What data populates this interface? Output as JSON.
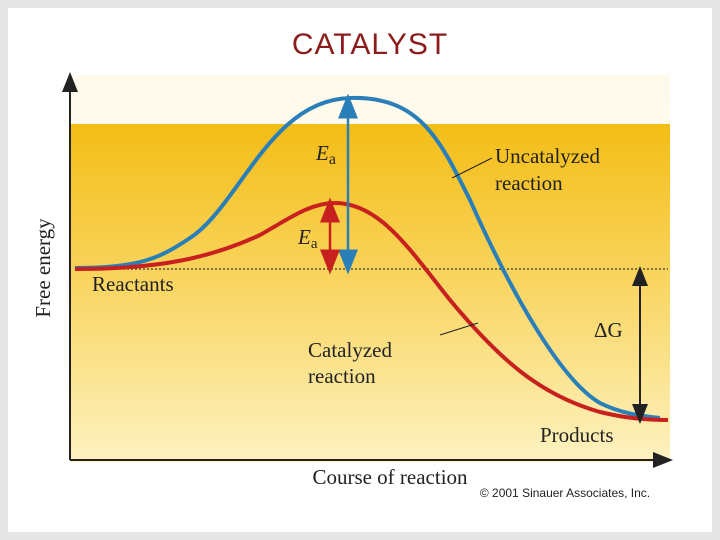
{
  "header": {
    "title": "CATALYST"
  },
  "diagram": {
    "y_axis_label": "Free energy",
    "x_axis_label": "Course of reaction",
    "uncatalyzed": {
      "label_lines": [
        "Uncatalyzed",
        "reaction"
      ],
      "energy_label": {
        "symbol": "E",
        "subscript": "a"
      }
    },
    "catalyzed": {
      "label_lines": [
        "Catalyzed",
        "reaction"
      ],
      "energy_label": {
        "symbol": "E",
        "subscript": "a"
      }
    },
    "reactants": "Reactants",
    "products": "Products",
    "delta_g": "ΔG",
    "credit": "© 2001 Sinauer Associates, Inc."
  }
}
